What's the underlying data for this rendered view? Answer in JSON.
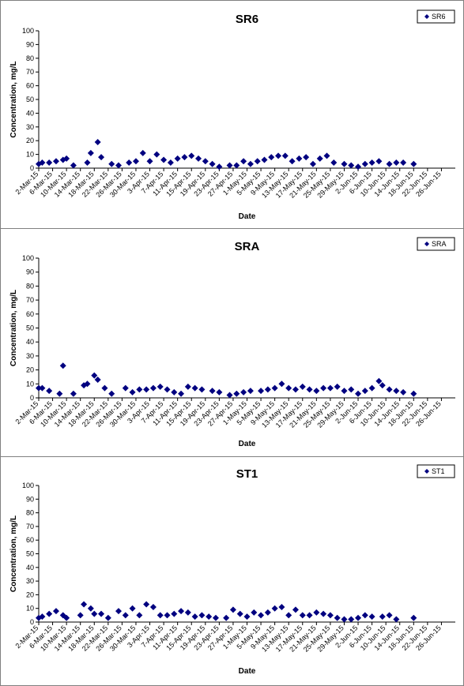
{
  "chart_data": [
    {
      "type": "scatter",
      "title": "SR6",
      "xlabel": "Date",
      "ylabel": "Concentration, mg/L",
      "ylim": [
        0,
        100
      ],
      "yticks": [
        0,
        10,
        20,
        30,
        40,
        50,
        60,
        70,
        80,
        90,
        100
      ],
      "xlim": [
        "2015-03-02",
        "2015-06-30"
      ],
      "xtick_labels": [
        "2-Mar-15",
        "6-Mar-15",
        "10-Mar-15",
        "14-Mar-15",
        "18-Mar-15",
        "22-Mar-15",
        "26-Mar-15",
        "30-Mar-15",
        "3-Apr-15",
        "7-Apr-15",
        "11-Apr-15",
        "15-Apr-15",
        "19-Apr-15",
        "23-Apr-15",
        "27-Apr-15",
        "1-May-15",
        "5-May-15",
        "9-May-15",
        "13-May-15",
        "17-May-15",
        "21-May-15",
        "25-May-15",
        "29-May-15",
        "2-Jun-15",
        "6-Jun-15",
        "10-Jun-15",
        "14-Jun-15",
        "18-Jun-15",
        "22-Jun-15",
        "26-Jun-15"
      ],
      "legend": {
        "position": "top-right"
      },
      "marker_color": "#000080",
      "series": [
        {
          "name": "SR6",
          "points": [
            [
              "2015-03-02",
              3
            ],
            [
              "2015-03-03",
              4
            ],
            [
              "2015-03-05",
              4
            ],
            [
              "2015-03-07",
              5
            ],
            [
              "2015-03-09",
              6
            ],
            [
              "2015-03-10",
              7
            ],
            [
              "2015-03-12",
              2
            ],
            [
              "2015-03-16",
              4
            ],
            [
              "2015-03-17",
              11
            ],
            [
              "2015-03-19",
              19
            ],
            [
              "2015-03-20",
              8
            ],
            [
              "2015-03-23",
              3
            ],
            [
              "2015-03-25",
              2
            ],
            [
              "2015-03-28",
              4
            ],
            [
              "2015-03-30",
              5
            ],
            [
              "2015-04-01",
              11
            ],
            [
              "2015-04-03",
              5
            ],
            [
              "2015-04-05",
              10
            ],
            [
              "2015-04-07",
              6
            ],
            [
              "2015-04-09",
              4
            ],
            [
              "2015-04-11",
              7
            ],
            [
              "2015-04-13",
              8
            ],
            [
              "2015-04-15",
              9
            ],
            [
              "2015-04-17",
              7
            ],
            [
              "2015-04-19",
              5
            ],
            [
              "2015-04-21",
              3
            ],
            [
              "2015-04-23",
              1
            ],
            [
              "2015-04-26",
              2
            ],
            [
              "2015-04-28",
              2
            ],
            [
              "2015-04-30",
              5
            ],
            [
              "2015-05-02",
              3
            ],
            [
              "2015-05-04",
              5
            ],
            [
              "2015-05-06",
              6
            ],
            [
              "2015-05-08",
              8
            ],
            [
              "2015-05-10",
              9
            ],
            [
              "2015-05-12",
              9
            ],
            [
              "2015-05-14",
              5
            ],
            [
              "2015-05-16",
              7
            ],
            [
              "2015-05-18",
              8
            ],
            [
              "2015-05-20",
              3
            ],
            [
              "2015-05-22",
              7
            ],
            [
              "2015-05-24",
              9
            ],
            [
              "2015-05-26",
              4
            ],
            [
              "2015-05-29",
              3
            ],
            [
              "2015-05-31",
              2
            ],
            [
              "2015-06-02",
              1
            ],
            [
              "2015-06-04",
              3
            ],
            [
              "2015-06-06",
              4
            ],
            [
              "2015-06-08",
              5
            ],
            [
              "2015-06-11",
              3
            ],
            [
              "2015-06-13",
              4
            ],
            [
              "2015-06-15",
              4
            ],
            [
              "2015-06-18",
              3
            ]
          ]
        }
      ]
    },
    {
      "type": "scatter",
      "title": "SRA",
      "xlabel": "Date",
      "ylabel": "Concentration, mg/L",
      "ylim": [
        0,
        100
      ],
      "yticks": [
        0,
        10,
        20,
        30,
        40,
        50,
        60,
        70,
        80,
        90,
        100
      ],
      "xlim": [
        "2015-03-02",
        "2015-06-30"
      ],
      "xtick_labels": [
        "2-Mar-15",
        "6-Mar-15",
        "10-Mar-15",
        "14-Mar-15",
        "18-Mar-15",
        "22-Mar-15",
        "26-Mar-15",
        "30-Mar-15",
        "3-Apr-15",
        "7-Apr-15",
        "11-Apr-15",
        "15-Apr-15",
        "19-Apr-15",
        "23-Apr-15",
        "27-Apr-15",
        "1-May-15",
        "5-May-15",
        "9-May-15",
        "13-May-15",
        "17-May-15",
        "21-May-15",
        "25-May-15",
        "29-May-15",
        "2-Jun-15",
        "6-Jun-15",
        "10-Jun-15",
        "14-Jun-15",
        "18-Jun-15",
        "22-Jun-15",
        "26-Jun-15"
      ],
      "legend": {
        "position": "top-right"
      },
      "marker_color": "#000080",
      "series": [
        {
          "name": "SRA",
          "points": [
            [
              "2015-03-02",
              7
            ],
            [
              "2015-03-03",
              7
            ],
            [
              "2015-03-05",
              5
            ],
            [
              "2015-03-08",
              3
            ],
            [
              "2015-03-09",
              23
            ],
            [
              "2015-03-12",
              3
            ],
            [
              "2015-03-15",
              9
            ],
            [
              "2015-03-16",
              10
            ],
            [
              "2015-03-18",
              16
            ],
            [
              "2015-03-19",
              13
            ],
            [
              "2015-03-21",
              7
            ],
            [
              "2015-03-23",
              3
            ],
            [
              "2015-03-27",
              7
            ],
            [
              "2015-03-29",
              4
            ],
            [
              "2015-03-31",
              6
            ],
            [
              "2015-04-02",
              6
            ],
            [
              "2015-04-04",
              7
            ],
            [
              "2015-04-06",
              8
            ],
            [
              "2015-04-08",
              6
            ],
            [
              "2015-04-10",
              4
            ],
            [
              "2015-04-12",
              3
            ],
            [
              "2015-04-14",
              8
            ],
            [
              "2015-04-16",
              7
            ],
            [
              "2015-04-18",
              6
            ],
            [
              "2015-04-21",
              5
            ],
            [
              "2015-04-23",
              4
            ],
            [
              "2015-04-26",
              2
            ],
            [
              "2015-04-28",
              3
            ],
            [
              "2015-04-30",
              4
            ],
            [
              "2015-05-02",
              5
            ],
            [
              "2015-05-05",
              5
            ],
            [
              "2015-05-07",
              6
            ],
            [
              "2015-05-09",
              7
            ],
            [
              "2015-05-11",
              10
            ],
            [
              "2015-05-13",
              7
            ],
            [
              "2015-05-15",
              6
            ],
            [
              "2015-05-17",
              8
            ],
            [
              "2015-05-19",
              6
            ],
            [
              "2015-05-21",
              5
            ],
            [
              "2015-05-23",
              7
            ],
            [
              "2015-05-25",
              7
            ],
            [
              "2015-05-27",
              8
            ],
            [
              "2015-05-29",
              5
            ],
            [
              "2015-05-31",
              6
            ],
            [
              "2015-06-02",
              3
            ],
            [
              "2015-06-04",
              5
            ],
            [
              "2015-06-06",
              7
            ],
            [
              "2015-06-08",
              12
            ],
            [
              "2015-06-09",
              9
            ],
            [
              "2015-06-11",
              6
            ],
            [
              "2015-06-13",
              5
            ],
            [
              "2015-06-15",
              4
            ],
            [
              "2015-06-18",
              3
            ]
          ]
        }
      ]
    },
    {
      "type": "scatter",
      "title": "ST1",
      "xlabel": "Date",
      "ylabel": "Concentration, mg/L",
      "ylim": [
        0,
        100
      ],
      "yticks": [
        0,
        10,
        20,
        30,
        40,
        50,
        60,
        70,
        80,
        90,
        100
      ],
      "xlim": [
        "2015-03-02",
        "2015-06-30"
      ],
      "xtick_labels": [
        "2-Mar-15",
        "6-Mar-15",
        "10-Mar-15",
        "14-Mar-15",
        "18-Mar-15",
        "22-Mar-15",
        "26-Mar-15",
        "30-Mar-15",
        "3-Apr-15",
        "7-Apr-15",
        "11-Apr-15",
        "15-Apr-15",
        "19-Apr-15",
        "23-Apr-15",
        "27-Apr-15",
        "1-May-15",
        "5-May-15",
        "9-May-15",
        "13-May-15",
        "17-May-15",
        "21-May-15",
        "25-May-15",
        "29-May-15",
        "2-Jun-15",
        "6-Jun-15",
        "10-Jun-15",
        "14-Jun-15",
        "18-Jun-15",
        "22-Jun-15",
        "26-Jun-15"
      ],
      "legend": {
        "position": "top-right"
      },
      "marker_color": "#000080",
      "series": [
        {
          "name": "ST1",
          "points": [
            [
              "2015-03-02",
              3
            ],
            [
              "2015-03-03",
              4
            ],
            [
              "2015-03-05",
              6
            ],
            [
              "2015-03-07",
              8
            ],
            [
              "2015-03-09",
              5
            ],
            [
              "2015-03-10",
              3
            ],
            [
              "2015-03-14",
              5
            ],
            [
              "2015-03-15",
              13
            ],
            [
              "2015-03-17",
              10
            ],
            [
              "2015-03-18",
              6
            ],
            [
              "2015-03-20",
              6
            ],
            [
              "2015-03-22",
              3
            ],
            [
              "2015-03-25",
              8
            ],
            [
              "2015-03-27",
              5
            ],
            [
              "2015-03-29",
              10
            ],
            [
              "2015-03-31",
              5
            ],
            [
              "2015-04-02",
              13
            ],
            [
              "2015-04-04",
              11
            ],
            [
              "2015-04-06",
              5
            ],
            [
              "2015-04-08",
              5
            ],
            [
              "2015-04-10",
              6
            ],
            [
              "2015-04-12",
              8
            ],
            [
              "2015-04-14",
              7
            ],
            [
              "2015-04-16",
              4
            ],
            [
              "2015-04-18",
              5
            ],
            [
              "2015-04-20",
              4
            ],
            [
              "2015-04-22",
              3
            ],
            [
              "2015-04-25",
              3
            ],
            [
              "2015-04-27",
              9
            ],
            [
              "2015-04-29",
              6
            ],
            [
              "2015-05-01",
              4
            ],
            [
              "2015-05-03",
              7
            ],
            [
              "2015-05-05",
              5
            ],
            [
              "2015-05-07",
              7
            ],
            [
              "2015-05-09",
              10
            ],
            [
              "2015-05-11",
              11
            ],
            [
              "2015-05-13",
              5
            ],
            [
              "2015-05-15",
              9
            ],
            [
              "2015-05-17",
              5
            ],
            [
              "2015-05-19",
              5
            ],
            [
              "2015-05-21",
              7
            ],
            [
              "2015-05-23",
              6
            ],
            [
              "2015-05-25",
              5
            ],
            [
              "2015-05-27",
              3
            ],
            [
              "2015-05-29",
              2
            ],
            [
              "2015-05-31",
              2
            ],
            [
              "2015-06-02",
              3
            ],
            [
              "2015-06-04",
              5
            ],
            [
              "2015-06-06",
              4
            ],
            [
              "2015-06-09",
              4
            ],
            [
              "2015-06-11",
              5
            ],
            [
              "2015-06-13",
              2
            ],
            [
              "2015-06-18",
              3
            ]
          ]
        }
      ]
    }
  ]
}
